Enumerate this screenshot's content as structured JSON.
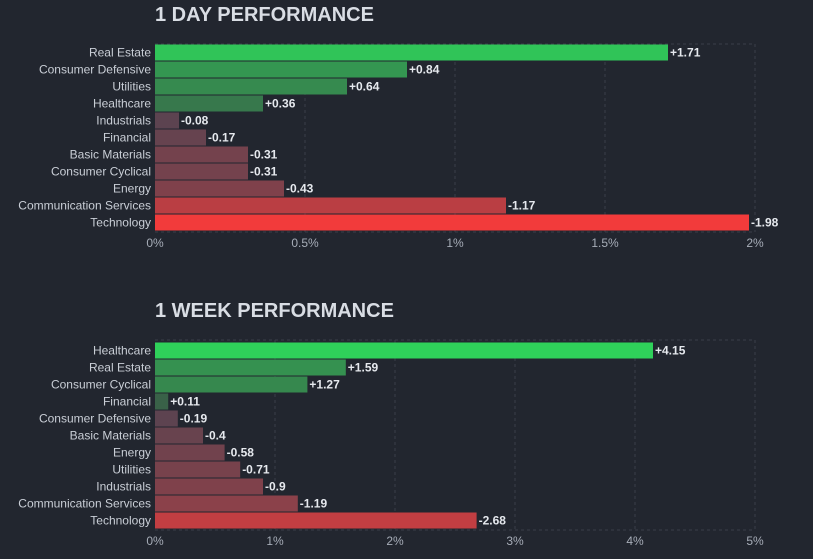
{
  "chart_data": [
    {
      "type": "bar",
      "orientation": "horizontal",
      "title": "1 DAY PERFORMANCE",
      "categories": [
        "Real Estate",
        "Consumer Defensive",
        "Utilities",
        "Healthcare",
        "Industrials",
        "Financial",
        "Basic Materials",
        "Consumer Cyclical",
        "Energy",
        "Communication Services",
        "Technology"
      ],
      "values": [
        1.71,
        0.84,
        0.64,
        0.36,
        -0.08,
        -0.17,
        -0.31,
        -0.31,
        -0.43,
        -1.17,
        -1.98
      ],
      "value_labels": [
        "+1.71",
        "+0.84",
        "+0.64",
        "+0.36",
        "-0.08",
        "-0.17",
        "-0.31",
        "-0.31",
        "-0.43",
        "-1.17",
        "-1.98"
      ],
      "xlim": [
        0,
        2
      ],
      "x_ticks": [
        "0%",
        "0.5%",
        "1%",
        "1.5%",
        "2%"
      ],
      "grid": true
    },
    {
      "type": "bar",
      "orientation": "horizontal",
      "title": "1 WEEK PERFORMANCE",
      "categories": [
        "Healthcare",
        "Real Estate",
        "Consumer Cyclical",
        "Financial",
        "Consumer Defensive",
        "Basic Materials",
        "Energy",
        "Utilities",
        "Industrials",
        "Communication Services",
        "Technology"
      ],
      "values": [
        4.15,
        1.59,
        1.27,
        0.11,
        -0.19,
        -0.4,
        -0.58,
        -0.71,
        -0.9,
        -1.19,
        -2.68
      ],
      "value_labels": [
        "+4.15",
        "+1.59",
        "+1.27",
        "+0.11",
        "-0.19",
        "-0.4",
        "-0.58",
        "-0.71",
        "-0.9",
        "-1.19",
        "-2.68"
      ],
      "xlim": [
        0,
        5
      ],
      "x_ticks": [
        "0%",
        "1%",
        "2%",
        "3%",
        "4%",
        "5%"
      ],
      "grid": true
    }
  ],
  "colors": {
    "background": "#22262f",
    "positive_strong": "#2fd15a",
    "positive_weak": "#3a5a47",
    "negative_weak": "#4f4452",
    "negative_strong": "#f23b3b",
    "grid": "#3a3f4a"
  }
}
